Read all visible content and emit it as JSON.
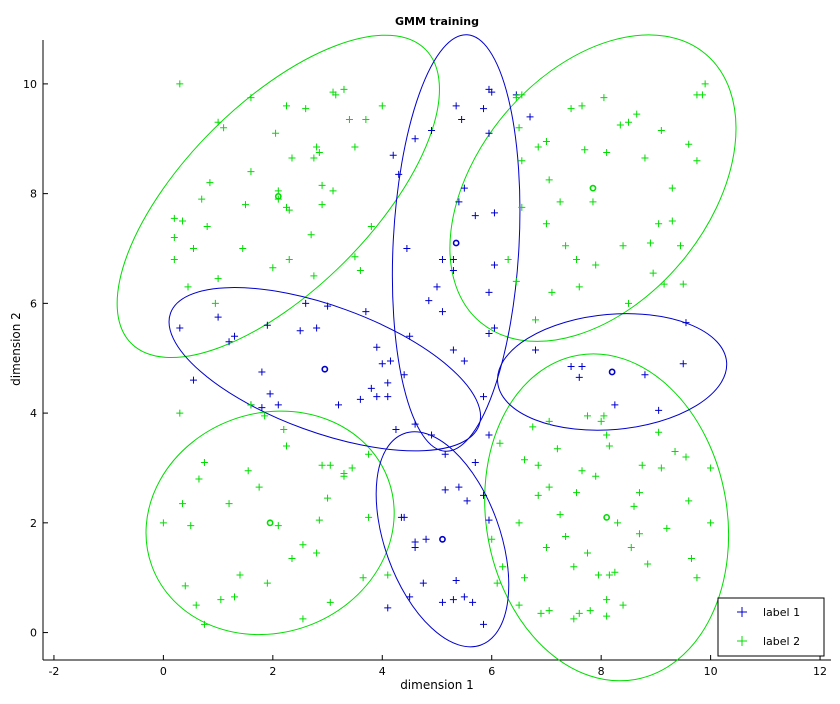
{
  "chart_data": {
    "type": "scatter",
    "title": "GMM training",
    "xlabel": "dimension 1",
    "ylabel": "dimension 2",
    "xlim": [
      -2.2,
      12.2
    ],
    "ylim": [
      -0.5,
      10.8
    ],
    "xticks": [
      "-2",
      "0",
      "2",
      "4",
      "6",
      "8",
      "10",
      "12"
    ],
    "yticks": [
      "0",
      "2",
      "4",
      "6",
      "8",
      "10"
    ],
    "grid": false,
    "legend_position": "bottom-right",
    "colors": {
      "label_1": "#0000cc",
      "label_2": "#00dd00"
    },
    "legend": [
      "label 1",
      "label 2"
    ],
    "series": [
      {
        "name": "label 1",
        "marker": "+",
        "color": "#0000cc",
        "points": [
          [
            0.3,
            5.55
          ],
          [
            1.2,
            5.3
          ],
          [
            1.3,
            5.4
          ],
          [
            1.0,
            5.75
          ],
          [
            1.9,
            5.6
          ],
          [
            2.5,
            5.5
          ],
          [
            2.8,
            5.55
          ],
          [
            2.6,
            6.0
          ],
          [
            3.0,
            5.95
          ],
          [
            0.55,
            4.6
          ],
          [
            1.8,
            4.75
          ],
          [
            1.95,
            4.35
          ],
          [
            1.6,
            4.15
          ],
          [
            2.1,
            4.15
          ],
          [
            1.8,
            4.1
          ],
          [
            3.2,
            4.15
          ],
          [
            3.6,
            4.25
          ],
          [
            3.8,
            4.45
          ],
          [
            3.9,
            4.3
          ],
          [
            4.1,
            4.3
          ],
          [
            4.0,
            4.9
          ],
          [
            4.15,
            4.95
          ],
          [
            3.9,
            5.2
          ],
          [
            3.7,
            5.85
          ],
          [
            4.5,
            5.4
          ],
          [
            5.3,
            5.15
          ],
          [
            5.5,
            4.95
          ],
          [
            4.1,
            4.55
          ],
          [
            4.4,
            4.7
          ],
          [
            4.25,
            3.7
          ],
          [
            4.6,
            3.8
          ],
          [
            4.9,
            3.6
          ],
          [
            4.45,
            7.0
          ],
          [
            4.85,
            6.05
          ],
          [
            5.0,
            6.3
          ],
          [
            5.1,
            6.8
          ],
          [
            5.3,
            6.8
          ],
          [
            5.1,
            5.85
          ],
          [
            5.3,
            6.6
          ],
          [
            5.5,
            8.1
          ],
          [
            5.4,
            7.85
          ],
          [
            5.7,
            7.6
          ],
          [
            6.05,
            7.65
          ],
          [
            5.95,
            6.2
          ],
          [
            6.05,
            6.7
          ],
          [
            5.95,
            5.45
          ],
          [
            6.05,
            5.55
          ],
          [
            4.2,
            8.7
          ],
          [
            4.3,
            8.35
          ],
          [
            4.6,
            9.0
          ],
          [
            4.9,
            9.15
          ],
          [
            5.35,
            9.6
          ],
          [
            5.45,
            9.35
          ],
          [
            5.85,
            9.55
          ],
          [
            5.95,
            9.9
          ],
          [
            6.0,
            9.85
          ],
          [
            5.95,
            9.1
          ],
          [
            6.45,
            9.8
          ],
          [
            6.7,
            9.4
          ],
          [
            6.8,
            5.15
          ],
          [
            7.45,
            4.85
          ],
          [
            7.65,
            4.85
          ],
          [
            7.6,
            4.65
          ],
          [
            8.25,
            4.15
          ],
          [
            8.8,
            4.7
          ],
          [
            9.5,
            4.9
          ],
          [
            9.55,
            5.65
          ],
          [
            9.05,
            4.05
          ],
          [
            4.6,
            1.55
          ],
          [
            4.4,
            2.1
          ],
          [
            4.35,
            2.1
          ],
          [
            4.6,
            1.65
          ],
          [
            4.8,
            1.7
          ],
          [
            4.75,
            0.9
          ],
          [
            4.5,
            0.65
          ],
          [
            4.1,
            0.45
          ],
          [
            5.1,
            0.55
          ],
          [
            5.35,
            0.95
          ],
          [
            5.3,
            0.6
          ],
          [
            5.5,
            0.65
          ],
          [
            5.55,
            2.4
          ],
          [
            5.4,
            2.65
          ],
          [
            5.15,
            3.25
          ],
          [
            5.15,
            2.6
          ],
          [
            5.85,
            2.5
          ],
          [
            5.95,
            2.05
          ],
          [
            5.7,
            3.1
          ],
          [
            5.95,
            3.6
          ],
          [
            5.85,
            4.3
          ],
          [
            5.65,
            0.55
          ],
          [
            5.85,
            0.15
          ]
        ]
      },
      {
        "name": "label 2",
        "marker": "+",
        "color": "#00dd00",
        "points": [
          [
            0.3,
            10.0
          ],
          [
            0.2,
            7.55
          ],
          [
            0.2,
            7.2
          ],
          [
            0.2,
            6.8
          ],
          [
            0.35,
            7.5
          ],
          [
            0.45,
            6.3
          ],
          [
            0.55,
            7.0
          ],
          [
            0.7,
            7.9
          ],
          [
            0.8,
            7.4
          ],
          [
            0.85,
            8.2
          ],
          [
            1.0,
            9.3
          ],
          [
            1.1,
            9.2
          ],
          [
            1.0,
            6.45
          ],
          [
            0.95,
            6.0
          ],
          [
            1.45,
            7.0
          ],
          [
            1.5,
            7.8
          ],
          [
            1.6,
            8.4
          ],
          [
            1.6,
            9.75
          ],
          [
            2.0,
            6.65
          ],
          [
            2.05,
            9.1
          ],
          [
            2.1,
            8.05
          ],
          [
            2.1,
            7.9
          ],
          [
            2.25,
            9.6
          ],
          [
            2.25,
            7.75
          ],
          [
            2.3,
            7.7
          ],
          [
            2.3,
            6.8
          ],
          [
            2.35,
            8.65
          ],
          [
            2.6,
            9.55
          ],
          [
            2.75,
            8.65
          ],
          [
            2.75,
            6.5
          ],
          [
            2.7,
            7.25
          ],
          [
            2.8,
            8.85
          ],
          [
            2.85,
            8.75
          ],
          [
            2.9,
            7.8
          ],
          [
            2.9,
            8.15
          ],
          [
            3.1,
            8.05
          ],
          [
            3.1,
            9.85
          ],
          [
            3.15,
            9.8
          ],
          [
            3.3,
            9.9
          ],
          [
            3.4,
            9.35
          ],
          [
            3.5,
            8.85
          ],
          [
            3.5,
            6.85
          ],
          [
            3.6,
            6.6
          ],
          [
            3.7,
            9.35
          ],
          [
            3.8,
            7.4
          ],
          [
            4.0,
            9.6
          ],
          [
            6.45,
            9.75
          ],
          [
            6.55,
            9.8
          ],
          [
            6.5,
            9.2
          ],
          [
            6.55,
            8.6
          ],
          [
            6.55,
            7.75
          ],
          [
            6.3,
            6.8
          ],
          [
            6.45,
            6.4
          ],
          [
            6.8,
            5.7
          ],
          [
            6.85,
            8.85
          ],
          [
            7.05,
            8.25
          ],
          [
            7.0,
            8.95
          ],
          [
            7.0,
            7.45
          ],
          [
            7.1,
            6.2
          ],
          [
            7.25,
            7.85
          ],
          [
            7.35,
            7.05
          ],
          [
            7.45,
            9.55
          ],
          [
            7.55,
            6.8
          ],
          [
            7.6,
            6.3
          ],
          [
            7.65,
            9.6
          ],
          [
            7.7,
            8.8
          ],
          [
            7.85,
            7.85
          ],
          [
            7.9,
            6.7
          ],
          [
            8.05,
            9.75
          ],
          [
            8.1,
            8.75
          ],
          [
            8.35,
            9.25
          ],
          [
            8.4,
            7.05
          ],
          [
            8.5,
            9.3
          ],
          [
            8.65,
            9.45
          ],
          [
            8.8,
            8.65
          ],
          [
            8.9,
            7.1
          ],
          [
            8.95,
            6.55
          ],
          [
            9.05,
            7.45
          ],
          [
            9.1,
            9.15
          ],
          [
            9.15,
            6.35
          ],
          [
            9.3,
            8.1
          ],
          [
            9.45,
            7.05
          ],
          [
            9.5,
            6.35
          ],
          [
            9.6,
            8.9
          ],
          [
            9.75,
            8.6
          ],
          [
            9.75,
            9.8
          ],
          [
            9.85,
            9.8
          ],
          [
            9.9,
            10.0
          ],
          [
            8.5,
            6.0
          ],
          [
            9.3,
            7.5
          ],
          [
            0.0,
            2.0
          ],
          [
            0.3,
            4.0
          ],
          [
            0.35,
            2.35
          ],
          [
            0.4,
            0.85
          ],
          [
            0.5,
            1.95
          ],
          [
            0.6,
            0.5
          ],
          [
            0.65,
            2.8
          ],
          [
            0.75,
            3.1
          ],
          [
            1.05,
            0.6
          ],
          [
            1.2,
            2.35
          ],
          [
            1.3,
            0.65
          ],
          [
            1.4,
            1.05
          ],
          [
            1.55,
            2.95
          ],
          [
            1.6,
            4.15
          ],
          [
            1.75,
            2.65
          ],
          [
            1.85,
            3.95
          ],
          [
            1.9,
            0.9
          ],
          [
            2.1,
            1.95
          ],
          [
            2.2,
            3.7
          ],
          [
            2.25,
            3.4
          ],
          [
            2.35,
            1.35
          ],
          [
            2.55,
            1.6
          ],
          [
            2.8,
            1.45
          ],
          [
            2.85,
            2.05
          ],
          [
            2.9,
            3.05
          ],
          [
            3.0,
            2.45
          ],
          [
            3.05,
            3.05
          ],
          [
            3.3,
            2.85
          ],
          [
            3.3,
            2.9
          ],
          [
            3.45,
            3.0
          ],
          [
            3.65,
            1.0
          ],
          [
            3.75,
            2.1
          ],
          [
            3.75,
            3.25
          ],
          [
            4.1,
            1.05
          ],
          [
            3.05,
            0.55
          ],
          [
            2.55,
            0.25
          ],
          [
            0.75,
            0.15
          ],
          [
            6.1,
            0.9
          ],
          [
            6.0,
            1.7
          ],
          [
            6.2,
            1.2
          ],
          [
            6.5,
            2.0
          ],
          [
            6.6,
            1.0
          ],
          [
            6.75,
            3.75
          ],
          [
            6.85,
            3.05
          ],
          [
            6.9,
            0.35
          ],
          [
            7.05,
            0.4
          ],
          [
            7.05,
            2.65
          ],
          [
            7.2,
            3.35
          ],
          [
            7.35,
            1.75
          ],
          [
            7.55,
            2.55
          ],
          [
            7.6,
            0.35
          ],
          [
            7.65,
            2.95
          ],
          [
            7.75,
            3.95
          ],
          [
            7.8,
            0.4
          ],
          [
            7.9,
            2.85
          ],
          [
            7.95,
            1.05
          ],
          [
            8.05,
            3.95
          ],
          [
            8.1,
            3.6
          ],
          [
            8.1,
            0.3
          ],
          [
            8.15,
            1.05
          ],
          [
            8.15,
            3.4
          ],
          [
            8.25,
            1.1
          ],
          [
            8.3,
            2.0
          ],
          [
            8.4,
            0.5
          ],
          [
            8.55,
            1.55
          ],
          [
            8.6,
            2.3
          ],
          [
            8.7,
            1.8
          ],
          [
            8.7,
            2.55
          ],
          [
            8.75,
            3.05
          ],
          [
            8.85,
            1.25
          ],
          [
            9.05,
            3.65
          ],
          [
            9.1,
            3.0
          ],
          [
            9.2,
            1.9
          ],
          [
            9.35,
            3.3
          ],
          [
            9.55,
            3.2
          ],
          [
            9.6,
            2.4
          ],
          [
            9.65,
            1.35
          ],
          [
            9.75,
            1.0
          ],
          [
            10.0,
            2.0
          ],
          [
            10.0,
            3.0
          ],
          [
            6.5,
            0.5
          ],
          [
            6.85,
            2.5
          ],
          [
            7.5,
            1.2
          ],
          [
            7.05,
            3.85
          ],
          [
            8.1,
            0.6
          ],
          [
            6.15,
            3.45
          ],
          [
            6.6,
            3.15
          ],
          [
            7.0,
            1.55
          ],
          [
            7.25,
            2.15
          ],
          [
            7.5,
            0.25
          ],
          [
            7.75,
            1.45
          ],
          [
            8.0,
            3.85
          ]
        ]
      }
    ],
    "centers": [
      {
        "color": "#00dd00",
        "x": 2.1,
        "y": 7.95
      },
      {
        "color": "#00dd00",
        "x": 7.85,
        "y": 8.1
      },
      {
        "color": "#00dd00",
        "x": 1.95,
        "y": 2.0
      },
      {
        "color": "#00dd00",
        "x": 8.1,
        "y": 2.1
      },
      {
        "color": "#0000cc",
        "x": 5.35,
        "y": 7.1
      },
      {
        "color": "#0000cc",
        "x": 2.95,
        "y": 4.8
      },
      {
        "color": "#0000cc",
        "x": 8.2,
        "y": 4.75
      },
      {
        "color": "#0000cc",
        "x": 5.1,
        "y": 1.7
      }
    ],
    "ellipses": [
      {
        "color": "#00dd00",
        "cx": 2.1,
        "cy": 7.95,
        "rx": 3.8,
        "ry": 1.7,
        "angle_deg": 45
      },
      {
        "color": "#00dd00",
        "cx": 7.85,
        "cy": 8.1,
        "rx": 3.2,
        "ry": 2.1,
        "angle_deg": 50
      },
      {
        "color": "#00dd00",
        "cx": 1.95,
        "cy": 2.0,
        "rx": 2.3,
        "ry": 2.0,
        "angle_deg": 20
      },
      {
        "color": "#00dd00",
        "cx": 8.1,
        "cy": 2.1,
        "rx": 2.2,
        "ry": 3.0,
        "angle_deg": 10
      },
      {
        "color": "#0000cc",
        "cx": 5.35,
        "cy": 7.1,
        "rx": 1.15,
        "ry": 3.8,
        "angle_deg": -3
      },
      {
        "color": "#0000cc",
        "cx": 2.95,
        "cy": 4.8,
        "rx": 3.0,
        "ry": 1.15,
        "angle_deg": -20
      },
      {
        "color": "#0000cc",
        "cx": 8.2,
        "cy": 4.75,
        "rx": 2.1,
        "ry": 1.05,
        "angle_deg": 5
      },
      {
        "color": "#0000cc",
        "cx": 5.1,
        "cy": 1.7,
        "rx": 1.05,
        "ry": 2.05,
        "angle_deg": 20
      }
    ]
  }
}
